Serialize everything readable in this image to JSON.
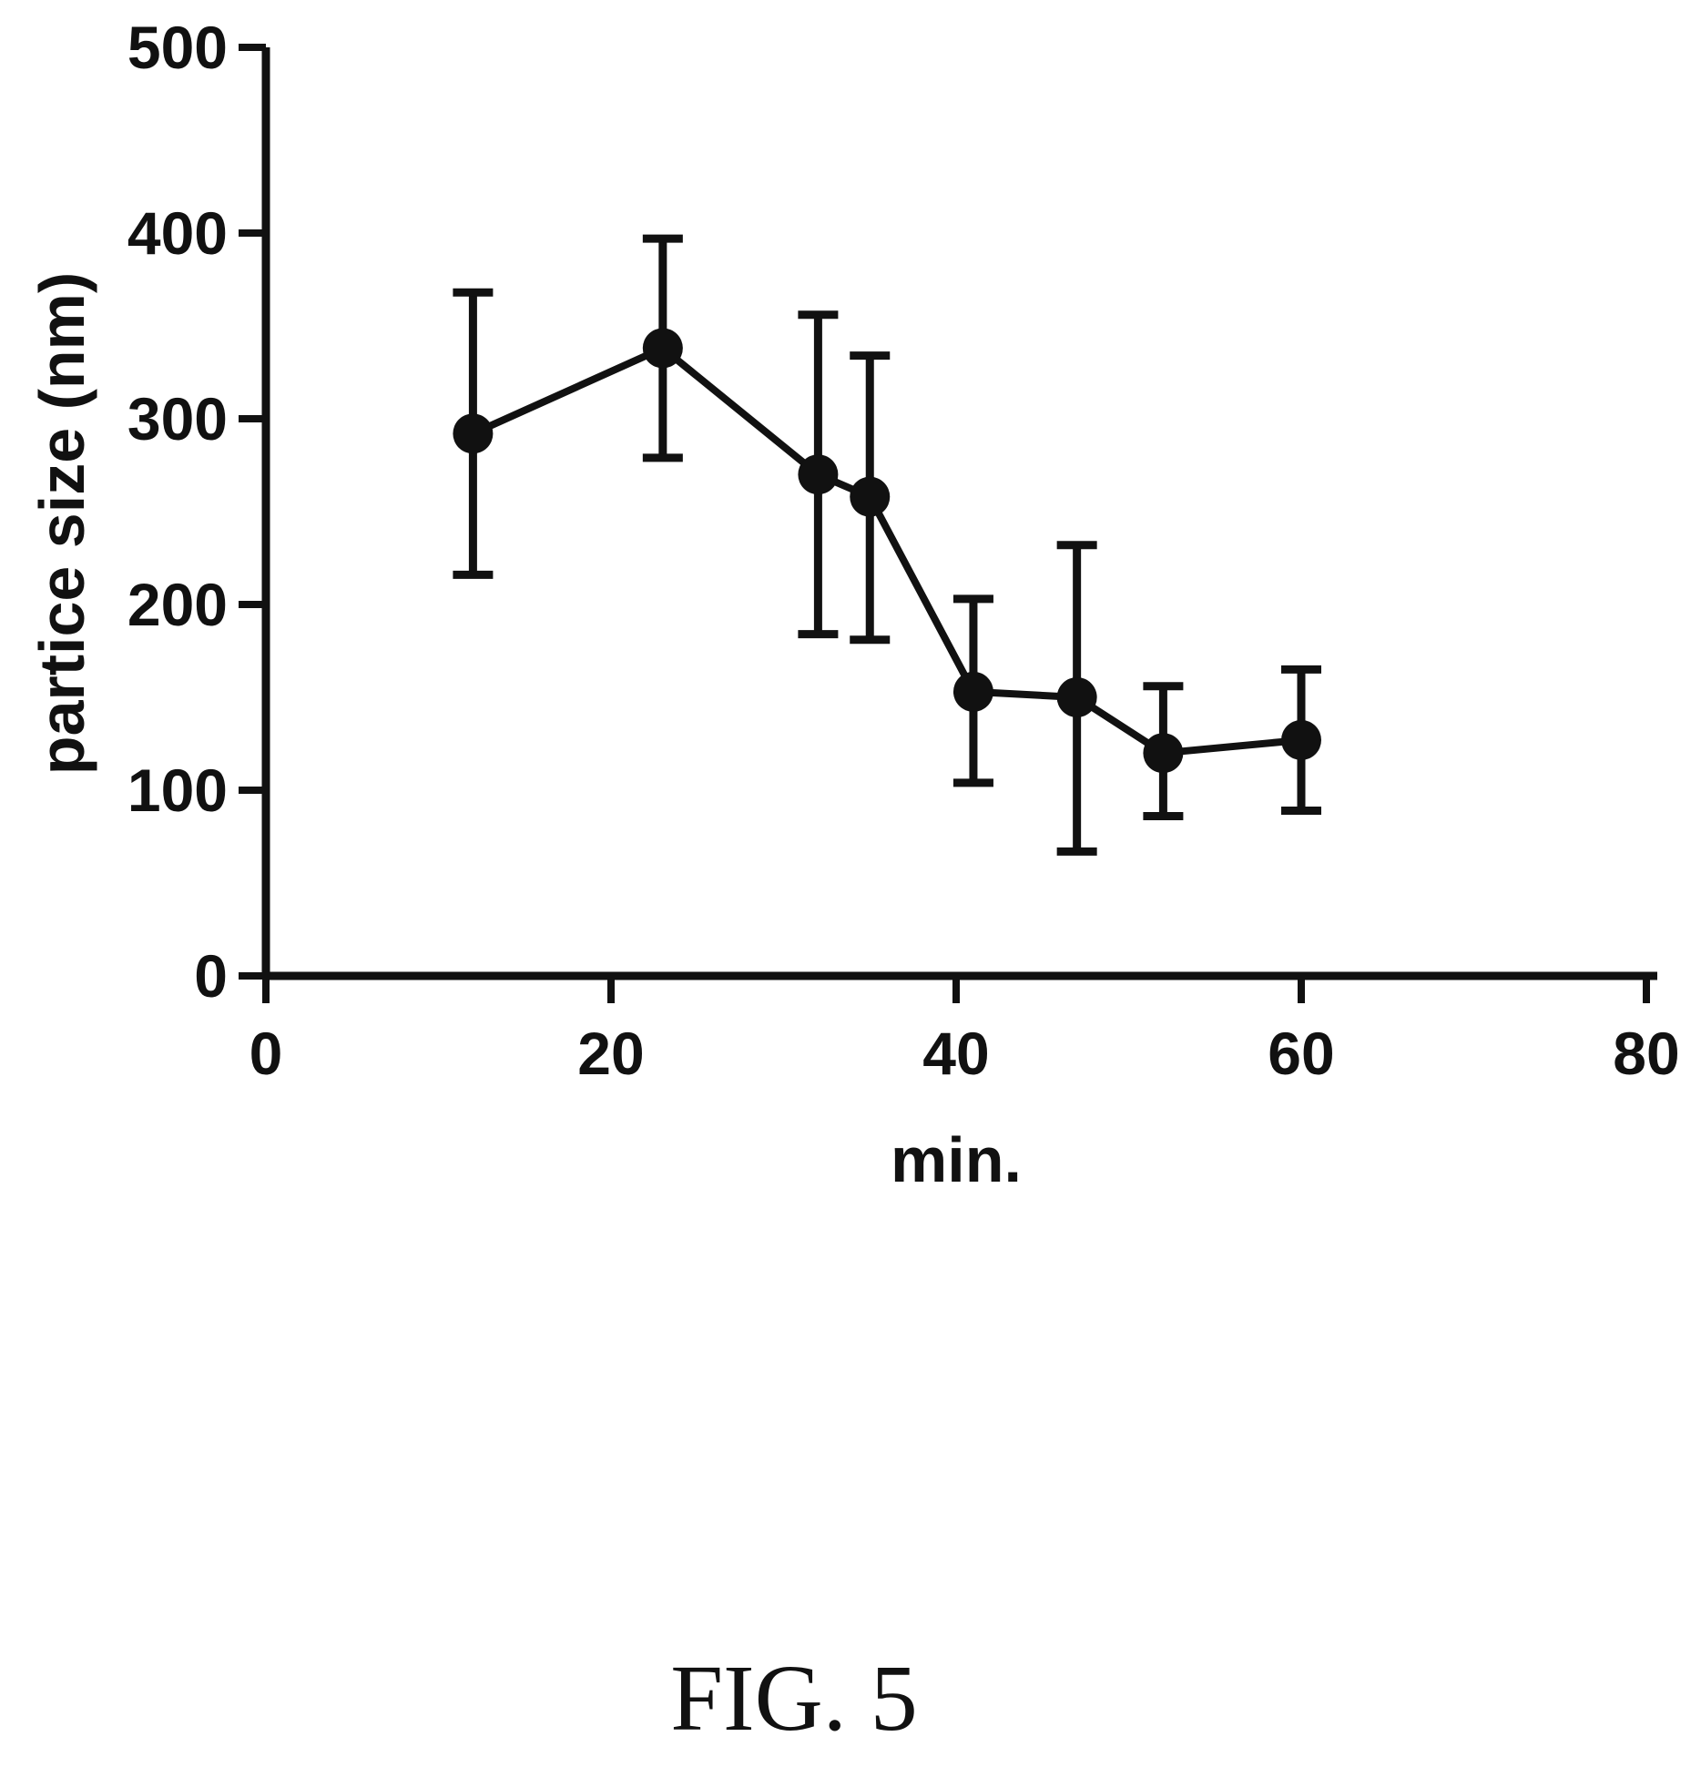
{
  "chart_data": {
    "type": "line",
    "xlabel": "min.",
    "ylabel": "partice size (nm)",
    "xlim": [
      0,
      80
    ],
    "ylim": [
      0,
      500
    ],
    "x_ticks": [
      "0",
      "20",
      "40",
      "60",
      "80"
    ],
    "y_ticks": [
      "0",
      "100",
      "200",
      "300",
      "400",
      "500"
    ],
    "grid": false,
    "series": [
      {
        "x": [
          12,
          23,
          32,
          35,
          41,
          47,
          52,
          60
        ],
        "y": [
          292,
          338,
          270,
          258,
          153,
          150,
          120,
          127
        ],
        "error_low": [
          216,
          279,
          184,
          181,
          104,
          67,
          86,
          89
        ],
        "error_high": [
          368,
          397,
          356,
          334,
          203,
          232,
          156,
          165
        ]
      }
    ]
  },
  "caption": "FIG. 5"
}
